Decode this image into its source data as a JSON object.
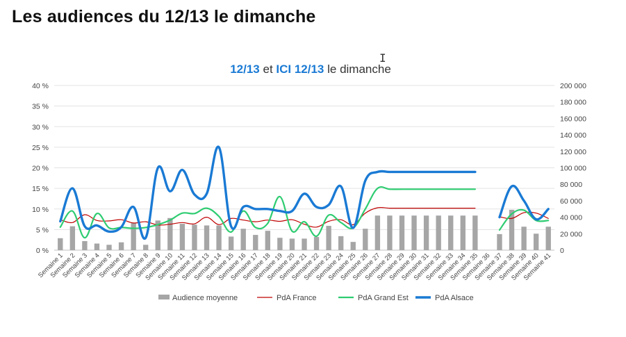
{
  "page": {
    "title": "Les audiences du 12/13 le dimanche"
  },
  "chart_data": {
    "type": "bar+line",
    "title_parts": [
      {
        "text": "12/13",
        "color": "#1a7ad4",
        "bold": true
      },
      {
        "text": " et ",
        "color": "#333333",
        "bold": false
      },
      {
        "text": "ICI 12/13",
        "color": "#1a7ad4",
        "bold": true
      },
      {
        "text": " le dimanche",
        "color": "#333333",
        "bold": false
      }
    ],
    "categories": [
      "Semaine 1",
      "Semaine 2",
      "Semaine 3",
      "Semaine 4",
      "Semaine 5",
      "Semaine 6",
      "Semaine 7",
      "Semaine 8",
      "Semaine 9",
      "Semaine 10",
      "Semaine 11",
      "Semaine 12",
      "Semaine 13",
      "Semaine 14",
      "Semaine 15",
      "Semaine 16",
      "Semaine 17",
      "Semaine 18",
      "Semaine 19",
      "Semaine 20",
      "Semaine 21",
      "Semaine 22",
      "Semaine 23",
      "Semaine 24",
      "Semaine 25",
      "Semaine 26",
      "Semaine 27",
      "Semaine 28",
      "Semaine 29",
      "Semaine 30",
      "Semaine 31",
      "Semaine 32",
      "Semaine 33",
      "Semaine 34",
      "Semaine 35",
      "Semaine 36",
      "Semaine 37",
      "Semaine 38",
      "Semaine 39",
      "Semaine 40",
      "Semaine 41"
    ],
    "x_tick_labels": [
      "Semaine 1",
      "Semaine 2",
      "Semaine 3",
      "Semaine 4",
      "Semaine 5",
      "Semaine 6",
      "Semaine 7",
      "Semaine 8",
      "Semaine 9",
      "Semaine 10",
      "Semaine 11",
      "Semaine 12",
      "Semaine 13",
      "Semaine 14",
      "Semaine 15",
      "Semaine 16",
      "Semaine 17",
      "Semaine 18",
      "Semaine 19",
      "Semaine 20",
      "Semaine 21",
      "Semaine 22",
      "Semaine 23",
      "Semaine 24",
      "Semaine 25",
      "Semaine 26",
      "Semaine 27",
      "Semaine 28",
      "Semaine 29",
      "Semaine 30",
      "Semaine 31",
      "Semaine 32",
      "Semaine 33",
      "Semaine 34",
      "Semaine 35",
      "Semaine 36",
      "Semaine 37",
      "Semaine 38",
      "Semaine 39",
      "Semaine 40",
      "Semaine 41"
    ],
    "y_left": {
      "ticks": [
        "40 %",
        "35 %",
        "30 %",
        "25 %",
        "20 %",
        "15 %",
        "10 %",
        "5 %",
        "0 %"
      ],
      "range": [
        0,
        40
      ],
      "unit": "%"
    },
    "y_right": {
      "ticks": [
        "200 000",
        "180 000",
        "160 000",
        "140 000",
        "120 000",
        "100 000",
        "80 000",
        "60 000",
        "40 000",
        "20 000",
        "0"
      ],
      "range": [
        0,
        200000
      ]
    },
    "grid": true,
    "legend_position": "bottom",
    "series": [
      {
        "name": "Audience moyenne",
        "kind": "bar",
        "axis": "right",
        "color": "#a6a6a6",
        "values": [
          14500,
          29000,
          11000,
          8000,
          6500,
          9500,
          33000,
          6500,
          36000,
          39000,
          32000,
          31000,
          30000,
          30000,
          16500,
          26000,
          18500,
          23500,
          15000,
          14000,
          14000,
          16000,
          29500,
          17000,
          10000,
          26000,
          42000,
          42000,
          42000,
          42000,
          42000,
          42000,
          42000,
          42000,
          42000,
          null,
          19500,
          49000,
          28500,
          20000,
          28500
        ]
      },
      {
        "name": "PdA France",
        "kind": "line",
        "axis": "left",
        "color": "#c00000",
        "values": [
          7.4,
          6.7,
          8.6,
          7.2,
          7.1,
          7.4,
          6.6,
          6.9,
          6.1,
          6.3,
          6.7,
          6.4,
          8.0,
          6.2,
          7.7,
          7.3,
          6.9,
          7.3,
          7.0,
          7.4,
          6.3,
          5.6,
          7.0,
          7.4,
          6.2,
          9.0,
          10.3,
          10.2,
          10.2,
          10.2,
          10.2,
          10.2,
          10.2,
          10.2,
          10.2,
          null,
          8.1,
          7.7,
          9.1,
          9.0,
          7.7
        ]
      },
      {
        "name": "PdA Grand Est",
        "kind": "line",
        "axis": "left",
        "color": "#2ecc71",
        "values": [
          5.6,
          9.5,
          3.0,
          8.9,
          5.4,
          5.5,
          5.3,
          5.5,
          6.2,
          7.3,
          9.0,
          8.9,
          10.2,
          8.2,
          4.4,
          9.5,
          5.5,
          6.5,
          13.0,
          4.6,
          6.9,
          3.4,
          8.5,
          6.7,
          5.4,
          10.0,
          15.0,
          14.8,
          14.8,
          14.8,
          14.8,
          14.8,
          14.8,
          14.8,
          14.8,
          null,
          4.9,
          8.8,
          9.7,
          7.2,
          7.2
        ]
      },
      {
        "name": "PdA Alsace",
        "kind": "line",
        "axis": "left",
        "color": "#1a7ad4",
        "values": [
          7.0,
          15.0,
          5.8,
          6.0,
          4.5,
          5.6,
          10.5,
          3.0,
          20.0,
          14.3,
          19.5,
          13.5,
          13.7,
          25.0,
          5.8,
          10.5,
          10.0,
          10.0,
          9.5,
          9.5,
          13.7,
          10.5,
          11.0,
          15.5,
          5.4,
          16.9,
          19.0,
          19.0,
          19.0,
          19.0,
          19.0,
          19.0,
          19.0,
          19.0,
          19.0,
          null,
          8.0,
          15.5,
          12.0,
          7.5,
          10.0
        ]
      }
    ]
  }
}
